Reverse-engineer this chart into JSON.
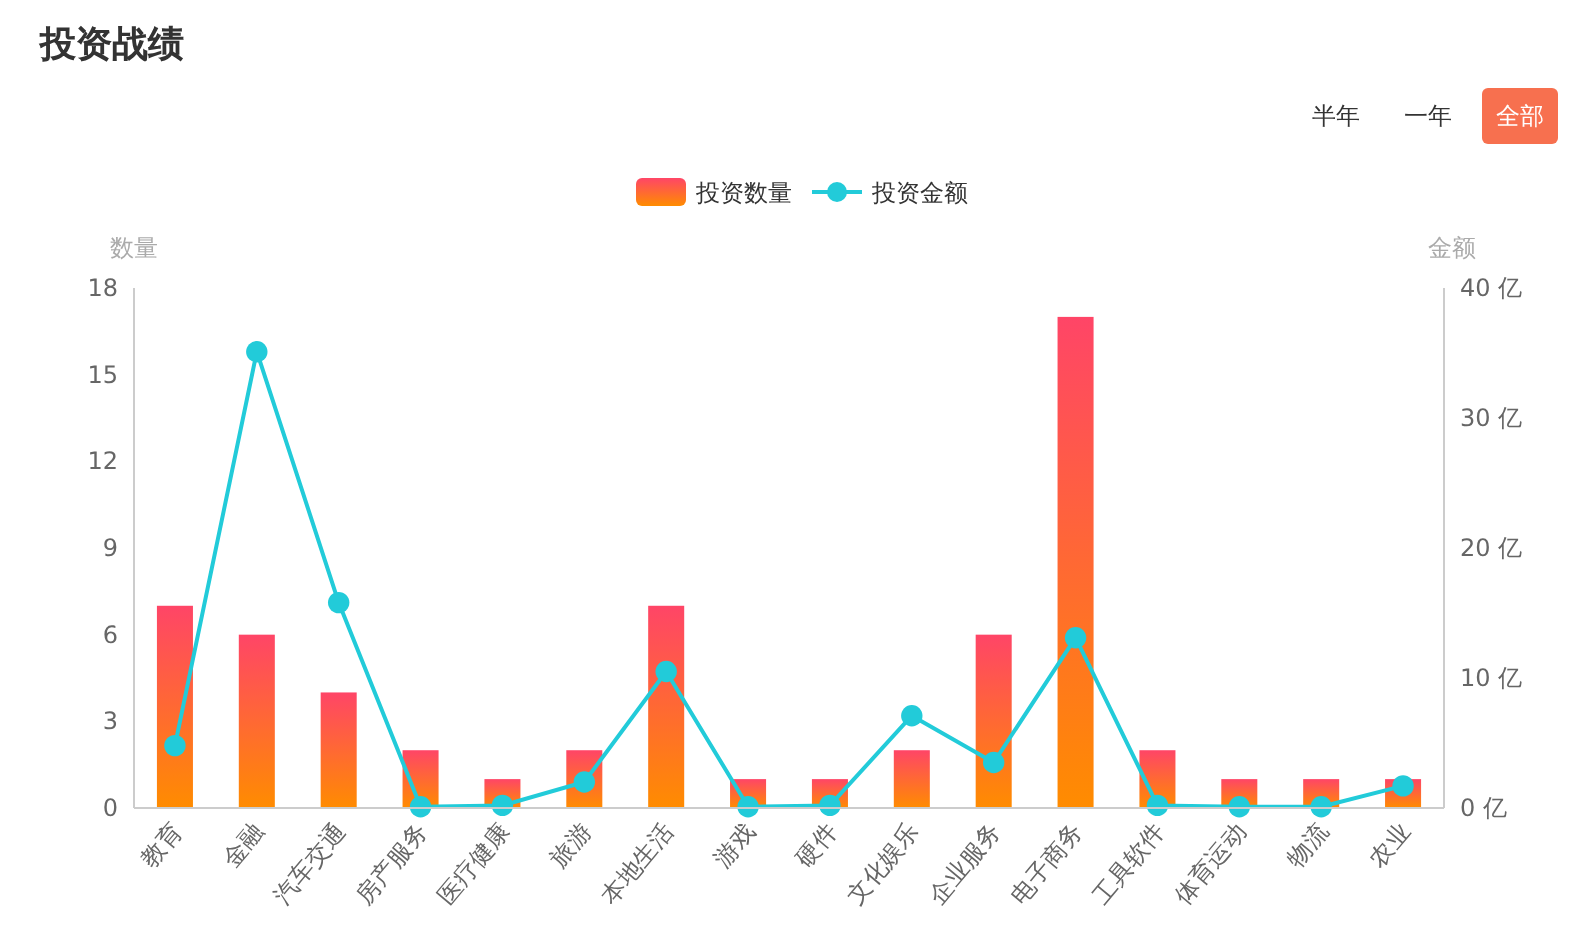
{
  "chart_data": {
    "type": "bar",
    "title": "投资战绩",
    "ylabel": "数量",
    "y2label": "金额",
    "annotations": [
      "半年",
      "一年",
      "全部"
    ],
    "categories": [
      "教育",
      "金融",
      "汽车交通",
      "房产服务",
      "医疗健康",
      "旅游",
      "本地生活",
      "游戏",
      "硬件",
      "文化娱乐",
      "企业服务",
      "电子商务",
      "工具软件",
      "体育运动",
      "物流",
      "农业"
    ],
    "series": [
      {
        "name": "投资数量",
        "color": "#ff4567",
        "values": [
          7,
          6,
          4,
          2,
          1,
          2,
          7,
          1,
          1,
          2,
          6,
          17,
          2,
          1,
          1,
          1
        ]
      },
      {
        "name": "投资金额",
        "type": "line",
        "axis": "y2",
        "color": "#22cbd9",
        "values": [
          4.8,
          35.1,
          15.8,
          0.1,
          0.2,
          2,
          10.5,
          0.1,
          0.2,
          7.1,
          3.5,
          13.1,
          0.2,
          0.1,
          0.1,
          1.7
        ]
      }
    ],
    "ylim": [
      0,
      18
    ],
    "yticks": [
      0,
      3,
      6,
      9,
      12,
      15,
      18
    ],
    "y2lim": [
      0,
      40
    ],
    "y2ticks": [
      {
        "value": 0,
        "label": "0 亿"
      },
      {
        "value": 10,
        "label": "10 亿"
      },
      {
        "value": 20,
        "label": "20 亿"
      },
      {
        "value": 30,
        "label": "30 亿"
      },
      {
        "value": 40,
        "label": "40 亿"
      }
    ],
    "legend": "top",
    "marker": "circle",
    "grid": false
  }
}
